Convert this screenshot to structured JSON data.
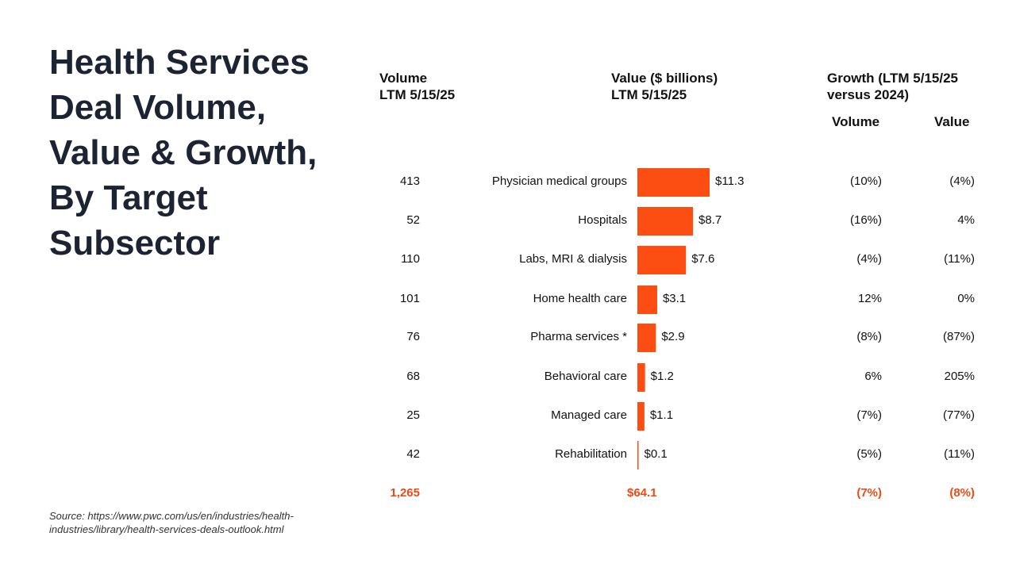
{
  "slide_title": "Health Services Deal Volume, Value & Growth, By Target Subsector",
  "source": "Source: https://www.pwc.com/us/en/industries/health-industries/library/health-services-deals-outlook.html",
  "headers": {
    "volume": "Volume\nLTM 5/15/25",
    "value": "Value ($ billions)\nLTM 5/15/25",
    "growth": "Growth (LTM 5/15/25\nversus 2024)",
    "growth_volume": "Volume",
    "growth_value": "Value"
  },
  "colors": {
    "bar": "#fc4d12",
    "total": "#ef4a14"
  },
  "chart_data": {
    "type": "bar",
    "orientation": "horizontal",
    "categories": [
      "Physician medical groups",
      "Hospitals",
      "Labs, MRI & dialysis",
      "Home health care",
      "Pharma services *",
      "Behavioral care",
      "Managed care",
      "Rehabilitation"
    ],
    "values": [
      11.3,
      8.7,
      7.6,
      3.1,
      2.9,
      1.2,
      1.1,
      0.1
    ],
    "value_labels": [
      "$11.3",
      "$8.7",
      "$7.6",
      "$3.1",
      "$2.9",
      "$1.2",
      "$1.1",
      "$0.1"
    ],
    "volume": [
      "413",
      "52",
      "110",
      "101",
      "76",
      "68",
      "25",
      "42"
    ],
    "growth_volume": [
      "(10%)",
      "(16%)",
      "(4%)",
      "12%",
      "(8%)",
      "6%",
      "(7%)",
      "(5%)"
    ],
    "growth_value": [
      "(4%)",
      "4%",
      "(11%)",
      "0%",
      "(87%)",
      "205%",
      "(77%)",
      "(11%)"
    ],
    "totals": {
      "volume": "1,265",
      "value": "$64.1",
      "growth_volume": "(7%)",
      "growth_value": "(8%)"
    }
  }
}
